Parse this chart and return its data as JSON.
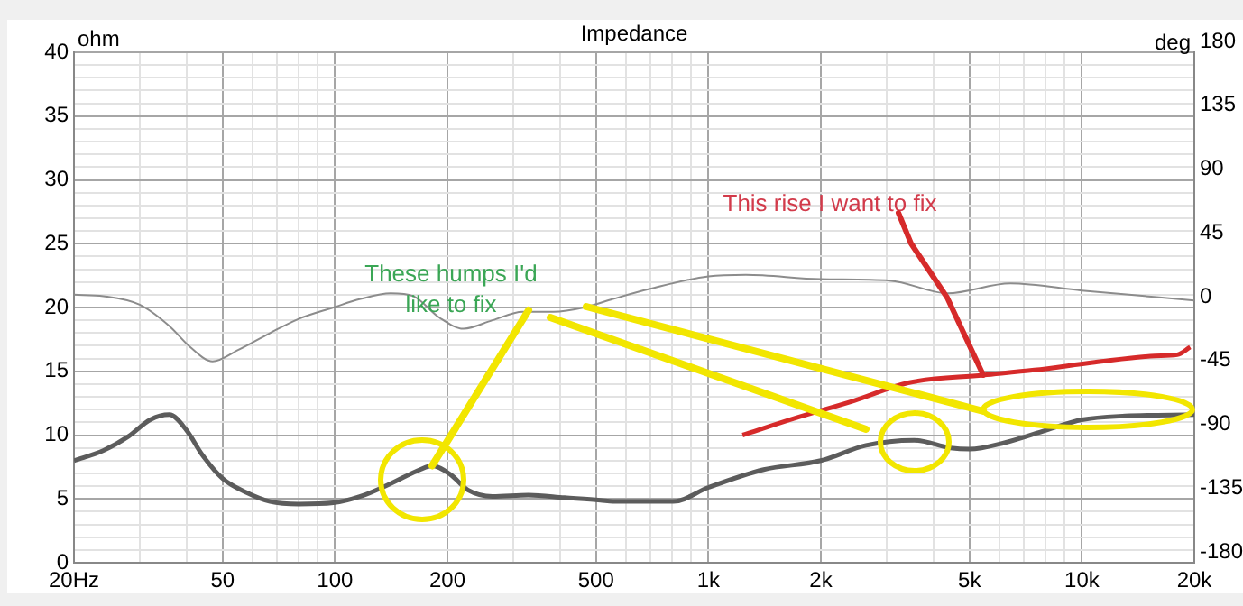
{
  "chart_data": {
    "type": "line",
    "title": "Impedance",
    "ylabel": "ohm",
    "y2label": "deg",
    "annotations": [
      {
        "text": "These humps I'd like to fix",
        "x": 182,
        "y": 7.6
      },
      {
        "text": "This rise I want to fix",
        "x": 5445,
        "y": 14.7
      }
    ],
    "log": "x",
    "grid": true,
    "xlim": [
      20,
      20000
    ],
    "ylim": [
      0,
      40
    ],
    "y2lim": [
      -180,
      180
    ],
    "xticks": [
      {
        "value": 20,
        "label": "20Hz"
      },
      {
        "value": 30,
        "label": null
      },
      {
        "value": 40,
        "label": null
      },
      50,
      {
        "value": 60,
        "label": null
      },
      {
        "value": 70,
        "label": null
      },
      {
        "value": 80,
        "label": null
      },
      {
        "value": 90,
        "label": null
      },
      100,
      200,
      {
        "value": 300,
        "label": null
      },
      {
        "value": 400,
        "label": null
      },
      500,
      {
        "value": 600,
        "label": null
      },
      {
        "value": 700,
        "label": null
      },
      {
        "value": 800,
        "label": null
      },
      {
        "value": 900,
        "label": null
      },
      {
        "value": 1000,
        "label": "1k"
      },
      {
        "value": 2000,
        "label": "2k"
      },
      {
        "value": 3000,
        "label": null
      },
      {
        "value": 4000,
        "label": null
      },
      {
        "value": 5000,
        "label": "5k"
      },
      {
        "value": 6000,
        "label": null
      },
      {
        "value": 7000,
        "label": null
      },
      {
        "value": 8000,
        "label": null
      },
      {
        "value": 9000,
        "label": null
      },
      {
        "value": 10000,
        "label": "10k"
      },
      {
        "value": 20000,
        "label": "20k"
      }
    ],
    "yticks": [
      0,
      {
        "value": 1,
        "label": null
      },
      {
        "value": 2,
        "label": null
      },
      {
        "value": 3,
        "label": null
      },
      {
        "value": 4,
        "label": null
      },
      5,
      {
        "value": 6,
        "label": null
      },
      {
        "value": 7,
        "label": null
      },
      {
        "value": 8,
        "label": null
      },
      {
        "value": 9,
        "label": null
      },
      10,
      {
        "value": 11,
        "label": null
      },
      {
        "value": 12,
        "label": null
      },
      {
        "value": 13,
        "label": null
      },
      {
        "value": 14,
        "label": null
      },
      15,
      {
        "value": 16,
        "label": null
      },
      {
        "value": 17,
        "label": null
      },
      {
        "value": 18,
        "label": null
      },
      {
        "value": 19,
        "label": null
      },
      20,
      {
        "value": 21,
        "label": null
      },
      {
        "value": 22,
        "label": null
      },
      {
        "value": 23,
        "label": null
      },
      {
        "value": 24,
        "label": null
      },
      25,
      {
        "value": 26,
        "label": null
      },
      {
        "value": 27,
        "label": null
      },
      {
        "value": 28,
        "label": null
      },
      {
        "value": 29,
        "label": null
      },
      30,
      {
        "value": 31,
        "label": null
      },
      {
        "value": 32,
        "label": null
      },
      {
        "value": 33,
        "label": null
      },
      {
        "value": 34,
        "label": null
      },
      35,
      {
        "value": 36,
        "label": null
      },
      {
        "value": 37,
        "label": null
      },
      {
        "value": 38,
        "label": null
      },
      {
        "value": 39,
        "label": null
      },
      40
    ],
    "y2ticks": [
      -180,
      -135,
      -90,
      -45,
      0,
      45,
      90,
      135,
      180
    ],
    "series": [
      {
        "color": "#5c5c5c",
        "x": [
          20,
          24,
          28,
          32,
          36,
          40,
          44,
          50,
          58,
          67,
          80,
          99,
          117,
          141,
          169,
          182,
          204,
          227,
          264,
          330,
          412,
          514,
          555,
          694,
          806,
          1000,
          1406,
          2000,
          2642,
          3556,
          4446,
          5000,
          6206,
          8054,
          10000,
          13053,
          20000
        ],
        "values": [
          8.0,
          8.8,
          9.9,
          11.2,
          11.6,
          10.4,
          8.5,
          6.6,
          5.5,
          4.8,
          4.6,
          4.7,
          5.2,
          6.2,
          7.3,
          7.6,
          6.9,
          5.7,
          5.2,
          5.3,
          5.1,
          4.9,
          4.8,
          4.8,
          4.8,
          5.9,
          7.3,
          8.0,
          9.2,
          9.6,
          9.0,
          8.9,
          9.4,
          10.4,
          11.2,
          11.5,
          11.6
        ]
      },
      {
        "color": "#8c8c8c",
        "axis": "y2",
        "x": [
          20,
          24,
          30,
          36,
          41,
          47,
          55,
          67,
          80,
          99,
          117,
          141,
          162,
          190,
          221,
          264,
          318,
          385,
          464,
          555,
          694,
          1000,
          1260,
          2000,
          3062,
          4366,
          6440,
          10000,
          20000
        ],
        "values": [
          9,
          8,
          2,
          -13,
          -28,
          -38,
          -30,
          -18,
          -8,
          0,
          6,
          10,
          8,
          -7,
          -15,
          -9,
          -3,
          -3,
          0,
          6,
          13,
          22,
          23,
          20,
          19,
          10,
          17,
          12,
          5
        ]
      },
      {
        "color": "#d62a2a",
        "x": [
          1234,
          1693,
          2456,
          3427,
          5445,
          7460,
          10820,
          15660,
          18000,
          19500
        ],
        "values": [
          10.0,
          11.3,
          12.7,
          14.1,
          14.7,
          15.1,
          15.7,
          16.2,
          16.3,
          16.9
        ]
      }
    ]
  }
}
